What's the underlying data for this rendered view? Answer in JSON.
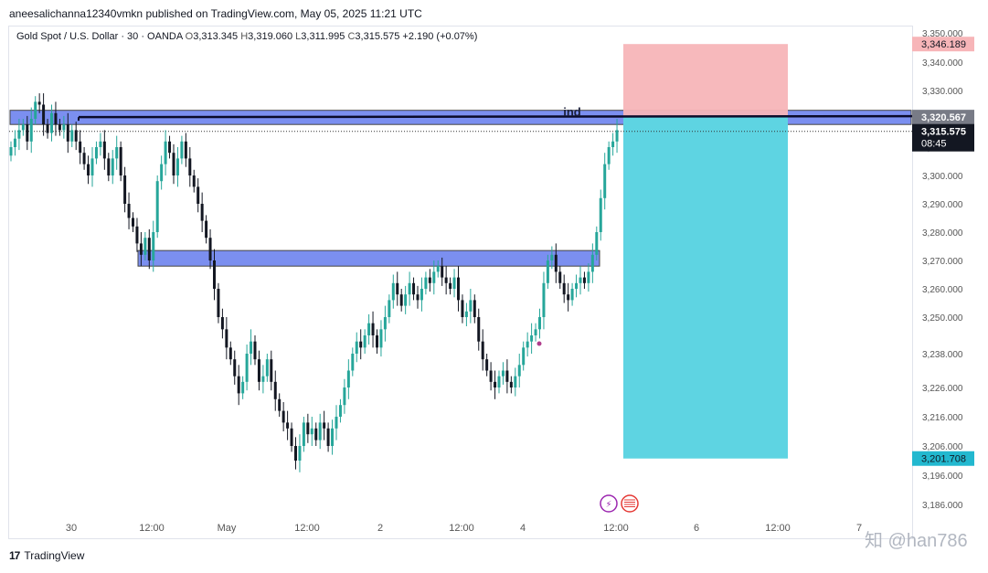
{
  "header": {
    "published_text": "aneesalichanna12340vmkn published on TradingView.com, May 05, 2025 11:21 UTC"
  },
  "legend": {
    "symbol": "Gold Spot / U.S. Dollar · 30 · OANDA",
    "open_label": "O",
    "open": "3,313.345",
    "high_label": "H",
    "high": "3,319.060",
    "low_label": "L",
    "low": "3,311.995",
    "close_label": "C",
    "close": "3,315.575",
    "change": "+2.190 (+0.07%)"
  },
  "footer": {
    "brand": "TradingView",
    "logo_mark": "17"
  },
  "watermark": "知 @han786",
  "colors": {
    "up": "#26a69a",
    "down": "#131722",
    "zone_fill": "#7b8ff0",
    "stop_fill": "#f7b5b8",
    "target_fill": "#5ed4e2",
    "stop_label_bg": "#f7b5b8",
    "target_label_bg": "#22b8cf",
    "price_label_bg": "#131722",
    "line_label_bg": "#787b86"
  },
  "chart_data": {
    "type": "candlestick",
    "symbol": "XAUUSD",
    "timeframe": "30",
    "y_ticks": [
      3350,
      3340,
      3330,
      3320,
      3310,
      3300,
      3290,
      3280,
      3270,
      3260,
      3250,
      3238,
      3226,
      3216,
      3206,
      3196,
      3186
    ],
    "y_tick_labels": [
      "3,350.000",
      "3,340.000",
      "3,330.000",
      "3,320.000",
      "3,310.000",
      "3,300.000",
      "3,290.000",
      "3,280.000",
      "3,270.000",
      "3,260.000",
      "3,250.000",
      "3,238.000",
      "3,226.000",
      "3,216.000",
      "3,206.000",
      "3,196.000",
      "3,186.000"
    ],
    "x_tick_labels": [
      "30",
      "12:00",
      "May",
      "12:00",
      "2",
      "12:00",
      "4",
      "12:00",
      "6",
      "12:00",
      "7"
    ],
    "price_labels": {
      "stop": "3,346.189",
      "line": "3,320.567",
      "last": "3,315.575",
      "countdown": "08:45",
      "target": "3,201.708"
    },
    "resistance_zone": [
      3318,
      3323
    ],
    "support_zone": [
      3268,
      3273.5
    ],
    "line_price": 3320.6,
    "line_label": "ind",
    "trade": {
      "entry": 3320.567,
      "stop": 3346.189,
      "target": 3201.708
    },
    "last_price": 3315.575,
    "close_path": [
      [
        0,
        3310
      ],
      [
        1,
        3313
      ],
      [
        2,
        3316
      ],
      [
        3,
        3318
      ],
      [
        4,
        3312
      ],
      [
        5,
        3320
      ],
      [
        6,
        3326
      ],
      [
        7,
        3325
      ],
      [
        8,
        3318
      ],
      [
        9,
        3315
      ],
      [
        10,
        3322
      ],
      [
        11,
        3318
      ],
      [
        12,
        3316
      ],
      [
        13,
        3318
      ],
      [
        14,
        3312
      ],
      [
        15,
        3316
      ],
      [
        16,
        3312
      ],
      [
        17,
        3308
      ],
      [
        18,
        3304
      ],
      [
        19,
        3300
      ],
      [
        20,
        3306
      ],
      [
        21,
        3310
      ],
      [
        22,
        3312
      ],
      [
        23,
        3306
      ],
      [
        24,
        3300
      ],
      [
        25,
        3306
      ],
      [
        26,
        3310
      ],
      [
        27,
        3300
      ],
      [
        28,
        3290
      ],
      [
        29,
        3285
      ],
      [
        30,
        3282
      ],
      [
        31,
        3276
      ],
      [
        32,
        3272
      ],
      [
        33,
        3278
      ],
      [
        34,
        3270
      ],
      [
        35,
        3280
      ],
      [
        36,
        3298
      ],
      [
        37,
        3304
      ],
      [
        38,
        3312
      ],
      [
        39,
        3308
      ],
      [
        40,
        3300
      ],
      [
        41,
        3306
      ],
      [
        42,
        3312
      ],
      [
        43,
        3306
      ],
      [
        44,
        3300
      ],
      [
        45,
        3296
      ],
      [
        46,
        3290
      ],
      [
        47,
        3284
      ],
      [
        48,
        3278
      ],
      [
        49,
        3270
      ],
      [
        50,
        3260
      ],
      [
        51,
        3250
      ],
      [
        52,
        3246
      ],
      [
        53,
        3240
      ],
      [
        54,
        3236
      ],
      [
        55,
        3230
      ],
      [
        56,
        3224
      ],
      [
        57,
        3228
      ],
      [
        58,
        3238
      ],
      [
        59,
        3242
      ],
      [
        60,
        3236
      ],
      [
        61,
        3228
      ],
      [
        62,
        3230
      ],
      [
        63,
        3236
      ],
      [
        64,
        3228
      ],
      [
        65,
        3222
      ],
      [
        66,
        3218
      ],
      [
        67,
        3214
      ],
      [
        68,
        3212
      ],
      [
        69,
        3206
      ],
      [
        70,
        3201
      ],
      [
        71,
        3206
      ],
      [
        72,
        3214
      ],
      [
        73,
        3210
      ],
      [
        74,
        3212
      ],
      [
        75,
        3208
      ],
      [
        76,
        3214
      ],
      [
        77,
        3212
      ],
      [
        78,
        3206
      ],
      [
        79,
        3212
      ],
      [
        80,
        3216
      ],
      [
        81,
        3220
      ],
      [
        82,
        3226
      ],
      [
        83,
        3232
      ],
      [
        84,
        3238
      ],
      [
        85,
        3242
      ],
      [
        86,
        3240
      ],
      [
        87,
        3244
      ],
      [
        88,
        3248
      ],
      [
        89,
        3244
      ],
      [
        90,
        3240
      ],
      [
        91,
        3246
      ],
      [
        92,
        3250
      ],
      [
        93,
        3256
      ],
      [
        94,
        3262
      ],
      [
        95,
        3258
      ],
      [
        96,
        3254
      ],
      [
        97,
        3258
      ],
      [
        98,
        3262
      ],
      [
        99,
        3258
      ],
      [
        100,
        3256
      ],
      [
        101,
        3260
      ],
      [
        102,
        3264
      ],
      [
        103,
        3262
      ],
      [
        104,
        3266
      ],
      [
        105,
        3268
      ],
      [
        106,
        3264
      ],
      [
        107,
        3262
      ],
      [
        108,
        3260
      ],
      [
        109,
        3264
      ],
      [
        110,
        3256
      ],
      [
        111,
        3250
      ],
      [
        112,
        3252
      ],
      [
        113,
        3256
      ],
      [
        114,
        3250
      ],
      [
        115,
        3242
      ],
      [
        116,
        3236
      ],
      [
        117,
        3232
      ],
      [
        118,
        3228
      ],
      [
        119,
        3226
      ],
      [
        120,
        3230
      ],
      [
        121,
        3232
      ],
      [
        122,
        3228
      ],
      [
        123,
        3226
      ],
      [
        124,
        3230
      ],
      [
        125,
        3234
      ],
      [
        126,
        3240
      ],
      [
        127,
        3242
      ],
      [
        128,
        3244
      ],
      [
        129,
        3246
      ],
      [
        130,
        3250
      ],
      [
        131,
        3262
      ],
      [
        132,
        3270
      ],
      [
        133,
        3272
      ],
      [
        134,
        3266
      ],
      [
        135,
        3262
      ],
      [
        136,
        3258
      ],
      [
        137,
        3256
      ],
      [
        138,
        3260
      ],
      [
        139,
        3262
      ],
      [
        140,
        3264
      ],
      [
        141,
        3262
      ],
      [
        142,
        3266
      ],
      [
        143,
        3272
      ],
      [
        144,
        3280
      ],
      [
        145,
        3292
      ],
      [
        146,
        3304
      ],
      [
        147,
        3310
      ],
      [
        148,
        3312
      ],
      [
        149,
        3316
      ]
    ]
  }
}
